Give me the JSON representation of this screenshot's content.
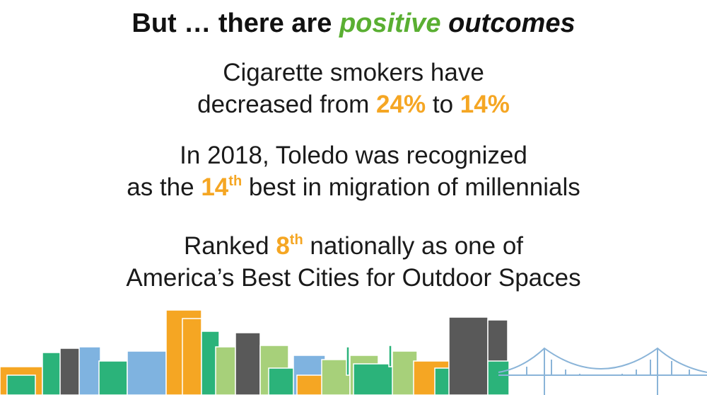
{
  "title": {
    "lead": "But … there are",
    "highlight": "positive",
    "tail": "outcomes"
  },
  "paragraphs": [
    {
      "line1": "Cigarette smokers have",
      "line2_lead": "decreased from",
      "from": "24%",
      "mid": "to",
      "to": "14%"
    },
    {
      "line1": "In 2018, Toledo was recognized",
      "line2_lead": "as the",
      "rank": "14",
      "suffix": "th",
      "line2_tail": "best in migration of millennials"
    },
    {
      "line1_lead": "Ranked",
      "rank": "8",
      "suffix": "th",
      "line1_tail": "nationally as one of",
      "line2": "America’s Best Cities for Outdoor Spaces"
    }
  ]
}
